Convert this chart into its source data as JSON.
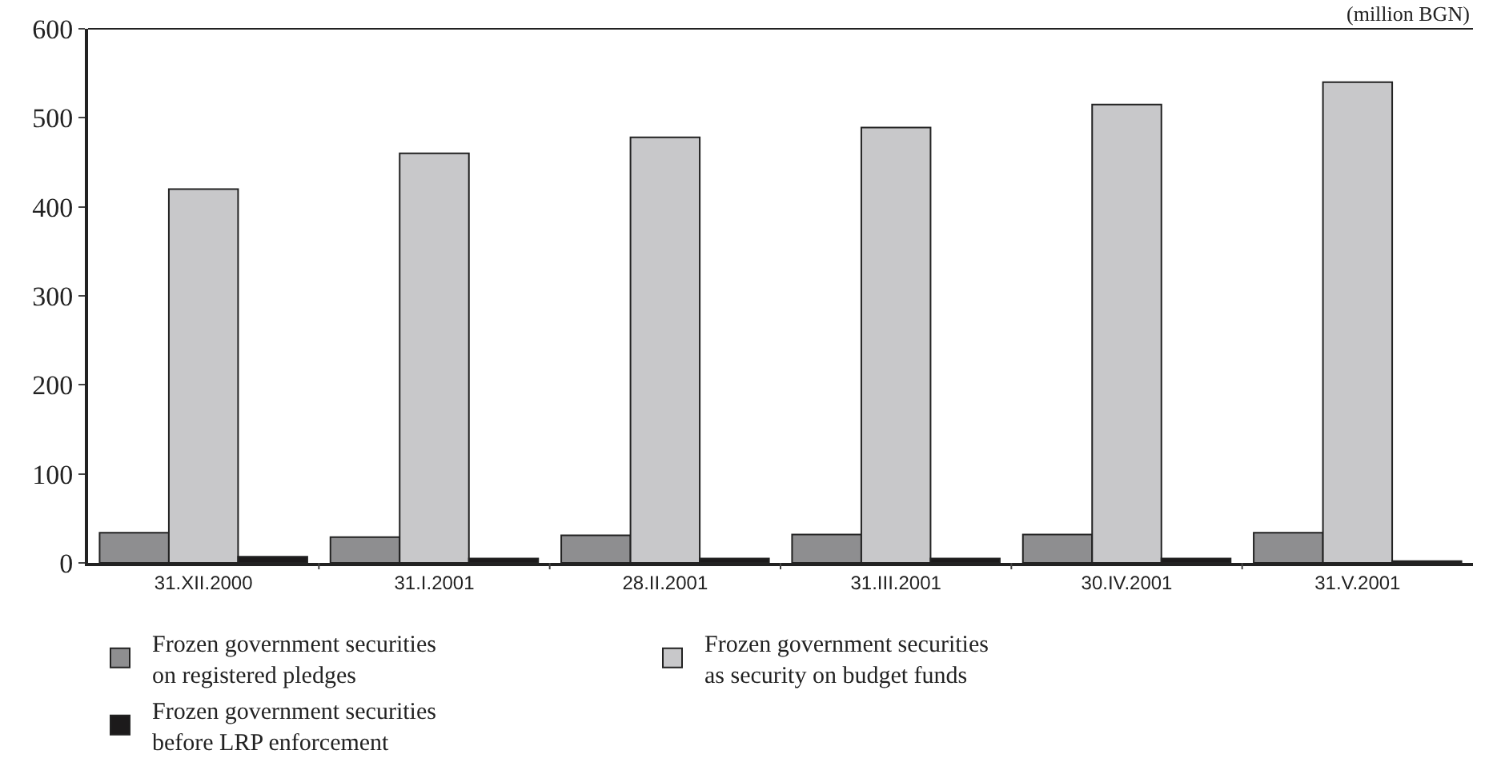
{
  "chart_data": {
    "type": "bar",
    "categories": [
      "31.XII.2000",
      "31.I.2001",
      "28.II.2001",
      "31.III.2001",
      "30.IV.2001",
      "31.V.2001"
    ],
    "series": [
      {
        "name": "Frozen government securities on registered pledges",
        "color": "#8e8e90",
        "values": [
          34,
          29,
          31,
          32,
          32,
          34
        ]
      },
      {
        "name": "Frozen government securities as security on budget funds",
        "color": "#c8c8ca",
        "values": [
          420,
          460,
          478,
          489,
          515,
          540
        ]
      },
      {
        "name": "Frozen government securities before LRP enforcement",
        "color": "#1c1a1b",
        "values": [
          7,
          5,
          5,
          5,
          5,
          2
        ]
      }
    ],
    "ylim": [
      0,
      600
    ],
    "yticks": [
      0,
      100,
      200,
      300,
      400,
      500,
      600
    ],
    "grid": false,
    "legend": "bottom",
    "annotations": [
      "(million BGN)"
    ]
  }
}
